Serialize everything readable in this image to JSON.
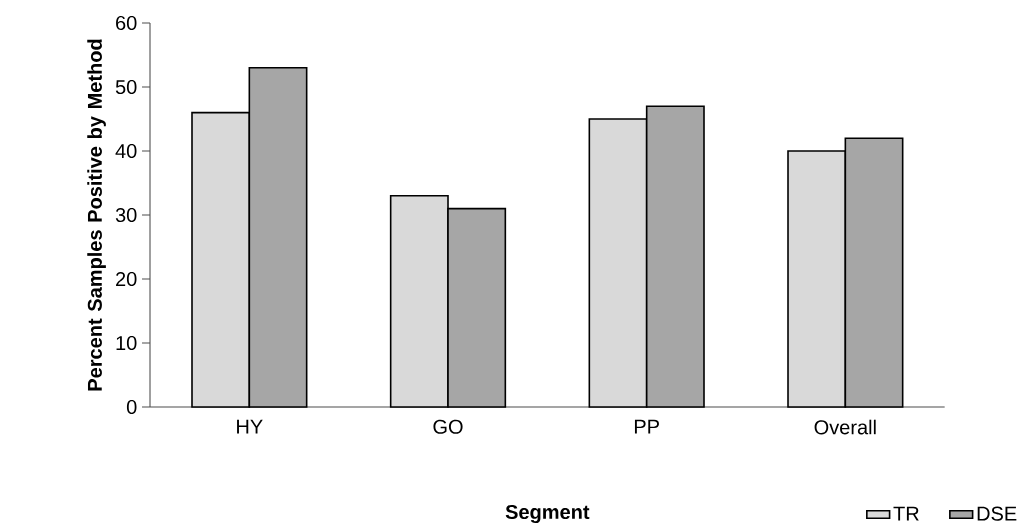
{
  "chart_data": {
    "type": "bar",
    "xlabel": "Segment",
    "ylabel": "Percent Samples Positive by Method",
    "categories": [
      "HY",
      "GO",
      "PP",
      "Overall"
    ],
    "series": [
      {
        "name": "TR",
        "color": "#d9d9d9",
        "values": [
          46,
          33,
          45,
          40
        ]
      },
      {
        "name": "DSE",
        "color": "#a6a6a6",
        "values": [
          53,
          31,
          47,
          42
        ]
      }
    ],
    "ylim": [
      0,
      60
    ],
    "yticks": [
      0,
      10,
      20,
      30,
      40,
      50,
      60
    ],
    "grid": false,
    "legend": "bottom right"
  }
}
